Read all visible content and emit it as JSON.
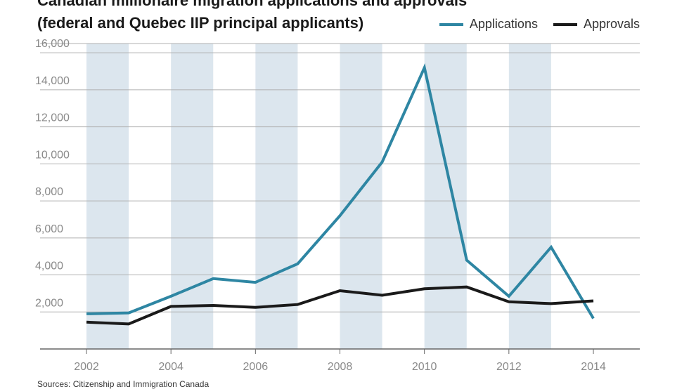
{
  "chart_data": {
    "type": "line",
    "title_lines": [
      "Canadian millionaire migration applications and approvals",
      "(federal and Quebec IIP principal applicants)"
    ],
    "x": [
      2002,
      2003,
      2004,
      2005,
      2006,
      2007,
      2008,
      2009,
      2010,
      2011,
      2012,
      2013,
      2014
    ],
    "x_tick_labels": [
      "2002",
      "2004",
      "2006",
      "2008",
      "2010",
      "2012",
      "2014"
    ],
    "x_ticks": [
      2002,
      2004,
      2006,
      2008,
      2010,
      2012,
      2014
    ],
    "xlim": [
      2002,
      2014
    ],
    "y_tick_labels": [
      "2,000",
      "4,000",
      "6,000",
      "8,000",
      "10,000",
      "12,000",
      "14,000",
      "16,000"
    ],
    "y_ticks": [
      2000,
      4000,
      6000,
      8000,
      10000,
      12000,
      14000,
      16000
    ],
    "ylim": [
      0,
      16500
    ],
    "shaded_years": [
      2002,
      2004,
      2006,
      2008,
      2010,
      2012
    ],
    "grid": true,
    "legend_position": "top-right",
    "series": [
      {
        "name": "Applications",
        "color": "#2e86a3",
        "values": [
          1900,
          1950,
          2850,
          3800,
          3600,
          4600,
          7200,
          10100,
          15200,
          4800,
          2850,
          5500,
          1650
        ]
      },
      {
        "name": "Approvals",
        "color": "#1a1a1a",
        "values": [
          1450,
          1350,
          2300,
          2350,
          2250,
          2400,
          3150,
          2900,
          3250,
          3350,
          2550,
          2450,
          2600
        ]
      }
    ],
    "colors": {
      "shade": "#dce6ee",
      "grid": "#b0b0b0",
      "axis": "#666666"
    },
    "source": "Sources: Citizenship and Immigration Canada"
  }
}
